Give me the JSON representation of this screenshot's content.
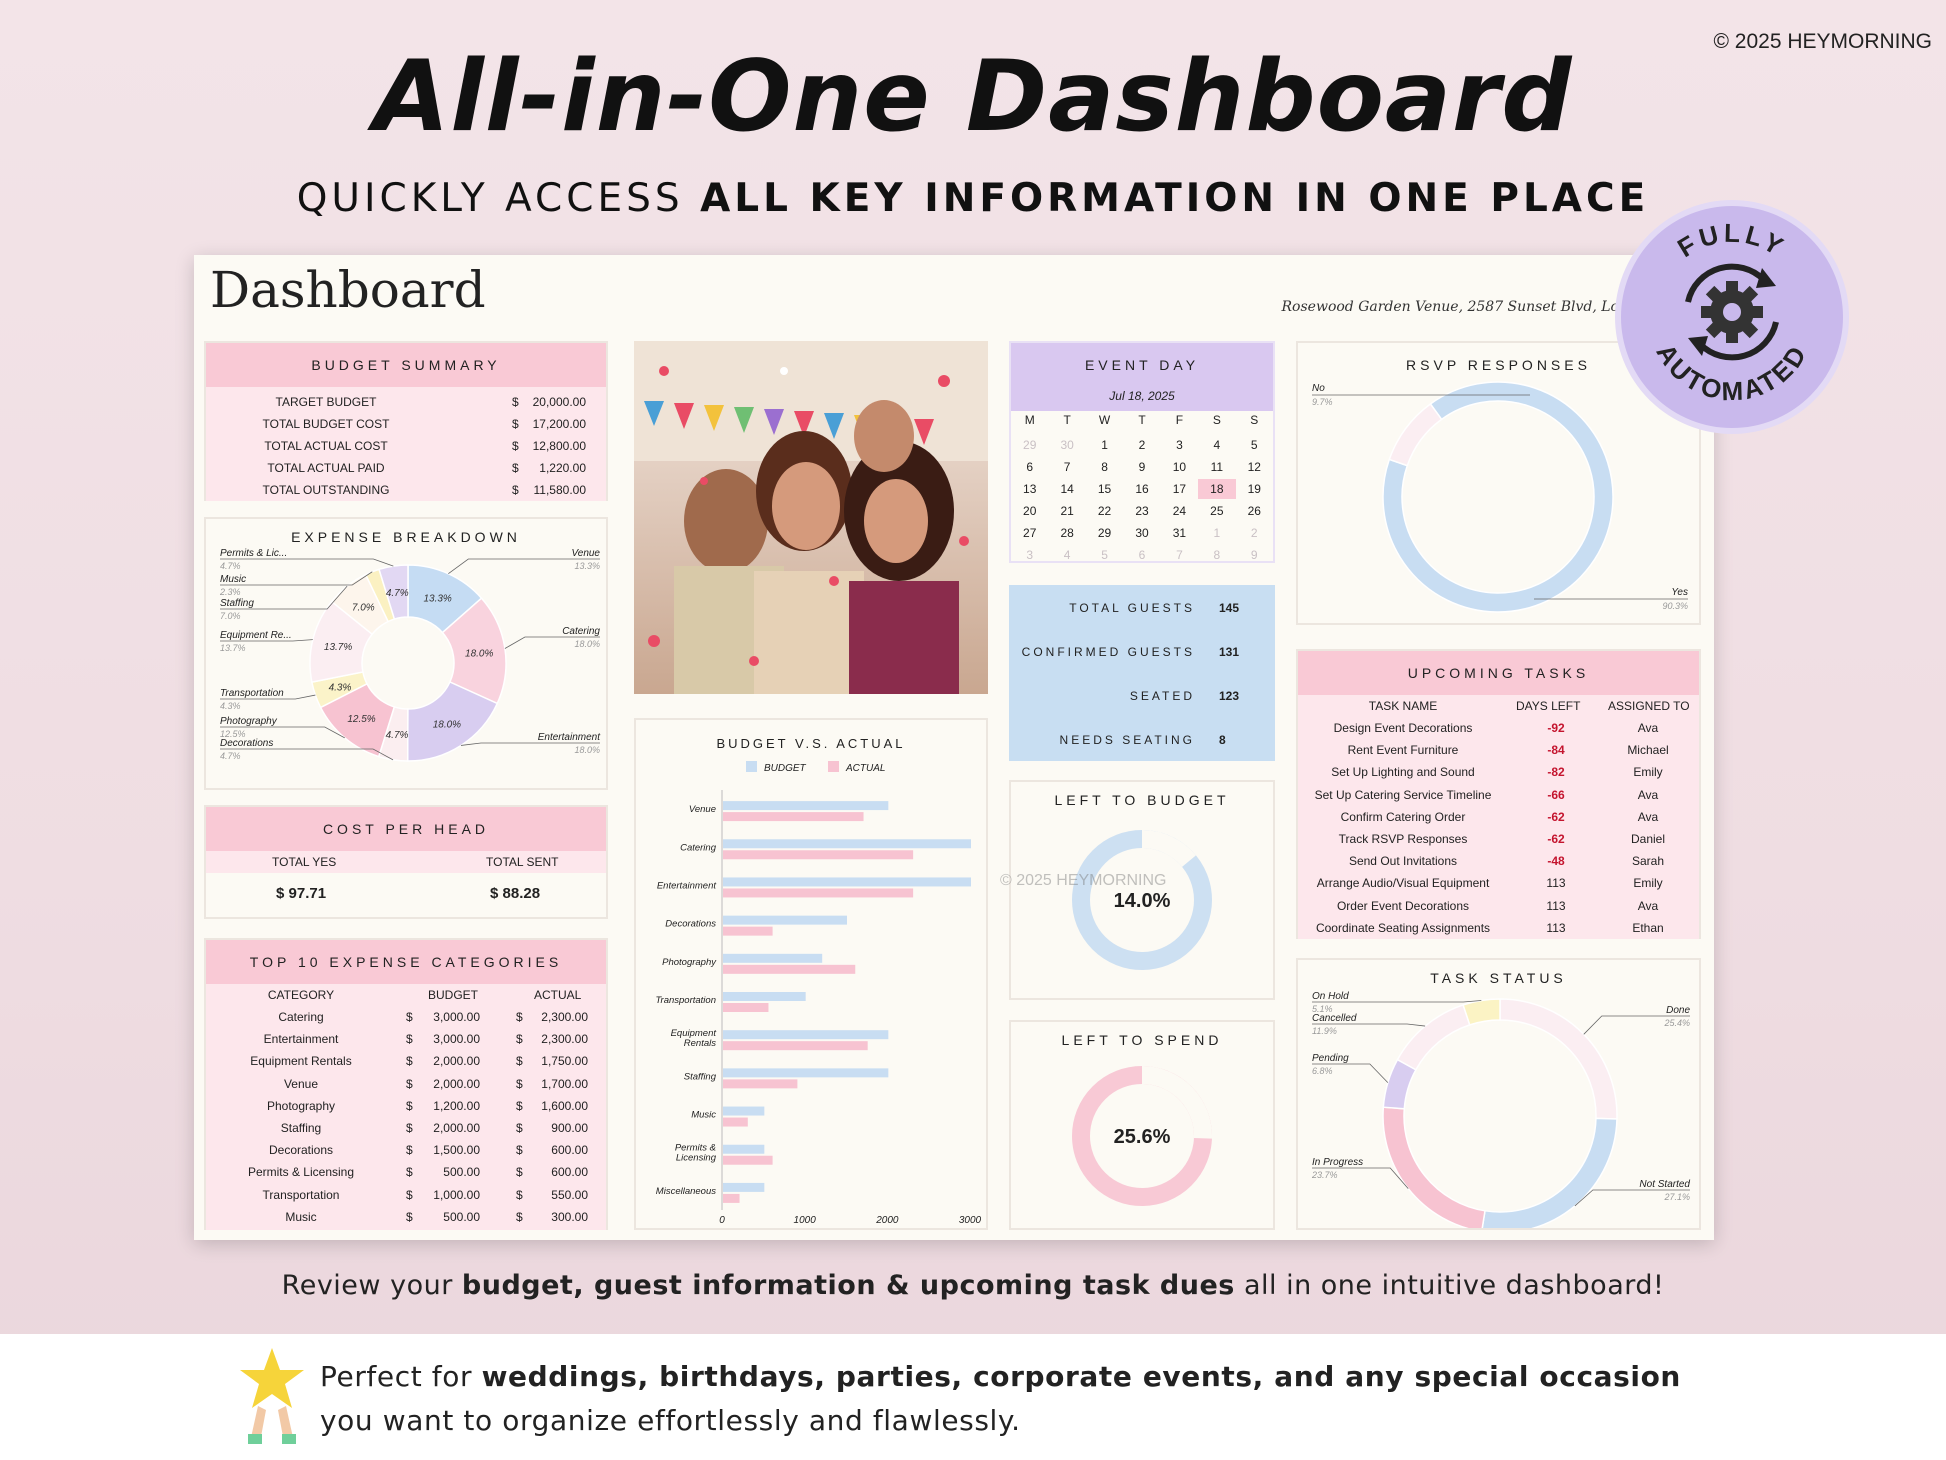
{
  "copyright": "© 2025 HEYMORNING",
  "headline": "All-in-One Dashboard",
  "subheadline": {
    "light": "QUICKLY ACCESS ",
    "bold": "ALL KEY INFORMATION IN ONE PLACE"
  },
  "badge": {
    "top": "FULLY",
    "bottom": "AUTOMATED",
    "icon": "gear-cycle-icon"
  },
  "sheet": {
    "title": "Dashboard",
    "venue": "Rosewood Garden Venue, 2587 Sunset Blvd, Lo",
    "watermark": "© 2025 HEYMORNING"
  },
  "budget_summary": {
    "title": "BUDGET SUMMARY",
    "rows": [
      {
        "label": "TARGET BUDGET",
        "cur": "$",
        "value": "20,000.00"
      },
      {
        "label": "TOTAL BUDGET COST",
        "cur": "$",
        "value": "17,200.00"
      },
      {
        "label": "TOTAL ACTUAL COST",
        "cur": "$",
        "value": "12,800.00"
      },
      {
        "label": "TOTAL ACTUAL PAID",
        "cur": "$",
        "value": "1,220.00"
      },
      {
        "label": "TOTAL OUTSTANDING",
        "cur": "$",
        "value": "11,580.00"
      }
    ]
  },
  "expense_breakdown": {
    "title": "EXPENSE BREAKDOWN",
    "slices": [
      {
        "name": "Venue",
        "pct": "13.3%",
        "value": 13.3,
        "color": "#c5dcf3"
      },
      {
        "name": "Catering",
        "pct": "18.0%",
        "value": 18.0,
        "color": "#f9d3de"
      },
      {
        "name": "Entertainment",
        "pct": "18.0%",
        "value": 18.0,
        "color": "#d8cdf0"
      },
      {
        "name": "Decorations",
        "pct": "4.7%",
        "value": 4.7,
        "color": "#fbeef0"
      },
      {
        "name": "Photography",
        "pct": "12.5%",
        "value": 12.5,
        "color": "#f7c3d1"
      },
      {
        "name": "Transportation",
        "pct": "4.3%",
        "value": 4.3,
        "color": "#fbf3c9"
      },
      {
        "name": "Equipment Re...",
        "pct": "13.7%",
        "value": 13.7,
        "color": "#fbeef2"
      },
      {
        "name": "Staffing",
        "pct": "7.0%",
        "value": 7.0,
        "color": "#fdf5ec"
      },
      {
        "name": "Music",
        "pct": "2.3%",
        "value": 2.3,
        "color": "#fbf1c2"
      },
      {
        "name": "Permits & Lic...",
        "pct": "4.7%",
        "value": 4.7,
        "color": "#e2d8f3"
      }
    ],
    "inner_labels": [
      "13.3%",
      "18.0%",
      "18.0%",
      "4.7%",
      "12.5%",
      "4.3%",
      "13.7%",
      "7.0%",
      "4.7%"
    ]
  },
  "cost_per_head": {
    "title": "COST PER HEAD",
    "col1": "TOTAL YES",
    "col2": "TOTAL SENT",
    "val1": "$ 97.71",
    "val2": "$ 88.28"
  },
  "top10": {
    "title": "TOP 10 EXPENSE CATEGORIES",
    "headers": [
      "CATEGORY",
      "BUDGET",
      "ACTUAL"
    ],
    "rows": [
      {
        "cat": "Catering",
        "budget": "3,000.00",
        "actual": "2,300.00"
      },
      {
        "cat": "Entertainment",
        "budget": "3,000.00",
        "actual": "2,300.00"
      },
      {
        "cat": "Equipment Rentals",
        "budget": "2,000.00",
        "actual": "1,750.00"
      },
      {
        "cat": "Venue",
        "budget": "2,000.00",
        "actual": "1,700.00"
      },
      {
        "cat": "Photography",
        "budget": "1,200.00",
        "actual": "1,600.00"
      },
      {
        "cat": "Staffing",
        "budget": "2,000.00",
        "actual": "900.00"
      },
      {
        "cat": "Decorations",
        "budget": "1,500.00",
        "actual": "600.00"
      },
      {
        "cat": "Permits & Licensing",
        "budget": "500.00",
        "actual": "600.00"
      },
      {
        "cat": "Transportation",
        "budget": "1,000.00",
        "actual": "550.00"
      },
      {
        "cat": "Music",
        "budget": "500.00",
        "actual": "300.00"
      }
    ]
  },
  "chart_data": {
    "type": "bar",
    "title": "BUDGET V.S. ACTUAL",
    "categories": [
      "Venue",
      "Catering",
      "Entertainment",
      "Decorations",
      "Photography",
      "Transportation",
      "Equipment Rentals",
      "Staffing",
      "Music",
      "Permits & Licensing",
      "Miscellaneous"
    ],
    "series": [
      {
        "name": "BUDGET",
        "color": "#c8ddf2",
        "values": [
          2000,
          3000,
          3000,
          1500,
          1200,
          1000,
          2000,
          2000,
          500,
          500,
          500
        ]
      },
      {
        "name": "ACTUAL",
        "color": "#f7c3d1",
        "values": [
          1700,
          2300,
          2300,
          600,
          1600,
          550,
          1750,
          900,
          300,
          600,
          200
        ]
      }
    ],
    "xticks": [
      "0",
      "1000",
      "2000",
      "3000"
    ],
    "xlim": [
      0,
      3000
    ],
    "orientation": "horizontal",
    "legend": "top"
  },
  "event_day": {
    "title": "EVENT DAY",
    "date": "Jul 18, 2025",
    "weekdays": [
      "M",
      "T",
      "W",
      "T",
      "F",
      "S",
      "S"
    ],
    "weeks": [
      [
        "29",
        "30",
        "1",
        "2",
        "3",
        "4",
        "5"
      ],
      [
        "6",
        "7",
        "8",
        "9",
        "10",
        "11",
        "12"
      ],
      [
        "13",
        "14",
        "15",
        "16",
        "17",
        "18",
        "19"
      ],
      [
        "20",
        "21",
        "22",
        "23",
        "24",
        "25",
        "26"
      ],
      [
        "27",
        "28",
        "29",
        "30",
        "31",
        "1",
        "2"
      ],
      [
        "3",
        "4",
        "5",
        "6",
        "7",
        "8",
        "9"
      ]
    ],
    "highlight": "18"
  },
  "guests": [
    {
      "label": "TOTAL GUESTS",
      "value": "145"
    },
    {
      "label": "CONFIRMED GUESTS",
      "value": "131"
    },
    {
      "label": "SEATED",
      "value": "123"
    },
    {
      "label": "NEEDS SEATING",
      "value": "8"
    }
  ],
  "left_to_budget": {
    "title": "LEFT TO BUDGET",
    "value": "14.0%",
    "fraction": 0.14,
    "color": "#c8ddf2"
  },
  "left_to_spend": {
    "title": "LEFT TO SPEND",
    "value": "25.6%",
    "fraction": 0.256,
    "color": "#f7c3d1"
  },
  "rsvp": {
    "title": "RSVP RESPONSES",
    "slices": [
      {
        "name": "Yes",
        "pct": "90.3%",
        "value": 90.3,
        "color": "#c8ddf2"
      },
      {
        "name": "No",
        "pct": "9.7%",
        "value": 9.7,
        "color": "#fbeef2"
      }
    ]
  },
  "tasks": {
    "title": "UPCOMING TASKS",
    "headers": [
      "TASK NAME",
      "DAYS LEFT",
      "ASSIGNED TO"
    ],
    "rows": [
      {
        "name": "Design Event Decorations",
        "days": "-92",
        "who": "Ava",
        "overdue": true
      },
      {
        "name": "Rent Event Furniture",
        "days": "-84",
        "who": "Michael",
        "overdue": true
      },
      {
        "name": "Set Up Lighting and Sound",
        "days": "-82",
        "who": "Emily",
        "overdue": true
      },
      {
        "name": "Set Up Catering Service Timeline",
        "days": "-66",
        "who": "Ava",
        "overdue": true
      },
      {
        "name": "Confirm Catering Order",
        "days": "-62",
        "who": "Ava",
        "overdue": true
      },
      {
        "name": "Track RSVP Responses",
        "days": "-62",
        "who": "Daniel",
        "overdue": true
      },
      {
        "name": "Send Out Invitations",
        "days": "-48",
        "who": "Sarah",
        "overdue": true
      },
      {
        "name": "Arrange Audio/Visual Equipment",
        "days": "113",
        "who": "Emily",
        "overdue": false
      },
      {
        "name": "Order Event Decorations",
        "days": "113",
        "who": "Ava",
        "overdue": false
      },
      {
        "name": "Coordinate Seating Assignments",
        "days": "113",
        "who": "Ethan",
        "overdue": false
      }
    ]
  },
  "task_status": {
    "title": "TASK STATUS",
    "slices": [
      {
        "name": "Done",
        "pct": "25.4%",
        "value": 25.4,
        "color": "#fbeef2"
      },
      {
        "name": "Not Started",
        "pct": "27.1%",
        "value": 27.1,
        "color": "#c8ddf2"
      },
      {
        "name": "In Progress",
        "pct": "23.7%",
        "value": 23.7,
        "color": "#f7c3d1"
      },
      {
        "name": "Pending",
        "pct": "6.8%",
        "value": 6.8,
        "color": "#d8cdf0"
      },
      {
        "name": "Cancelled",
        "pct": "11.9%",
        "value": 11.9,
        "color": "#fbeef2"
      },
      {
        "name": "On Hold",
        "pct": "5.1%",
        "value": 5.1,
        "color": "#fbf3c4"
      }
    ]
  },
  "footer": {
    "review_pre": "Review your ",
    "review_bold": "budget, guest information & upcoming task dues",
    "review_post": " all in one intuitive dashboard!",
    "perfect_pre": "Perfect for ",
    "perfect_bold": "weddings, birthdays, parties, corporate events, and any special occasion",
    "perfect_post": " you want to organize effortlessly and flawlessly."
  }
}
